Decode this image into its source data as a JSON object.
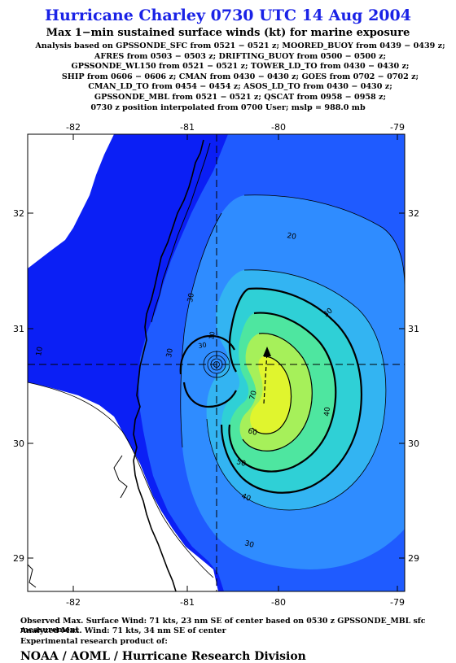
{
  "title": "Hurricane Charley 0730 UTC 14 Aug 2004",
  "subtitle": "Max 1−min sustained surface winds (kt) for marine exposure",
  "analysis_lines": [
    "Analysis based on  GPSSONDE_SFC from 0521 − 0521 z;  MOORED_BUOY from 0439 − 0439 z;",
    "AFRES from 0503 − 0503 z;  DRIFTING_BUOY from 0500 − 0500 z;",
    "GPSSONDE_WL150 from 0521 − 0521 z;  TOWER_LD_TO from 0430 − 0430 z;",
    "SHIP from 0606 − 0606 z;  CMAN from 0430 − 0430 z;  GOES from 0702 − 0702 z;",
    "CMAN_LD_TO from 0454 − 0454 z;  ASOS_LD_TO from 0430 − 0430 z;",
    "GPSSONDE_MBL from 0521 − 0521 z;  QSCAT from 0958 − 0958 z;"
  ],
  "position_note": "0730 z position interpolated from 0700 User; mslp = 988.0 mb",
  "map": {
    "lon_ticks": [
      "-82",
      "-81",
      "-80",
      "-79"
    ],
    "lat_ticks": [
      "32",
      "31",
      "30",
      "29"
    ],
    "contour_labels": [
      "10",
      "20",
      "30",
      "30",
      "30",
      "40",
      "40",
      "50",
      "60",
      "70",
      "10",
      "30",
      "30"
    ],
    "colors": {
      "land": "#ffffff",
      "ocean_low": "#0b1ff5",
      "ocean_15": "#1f5bff",
      "ocean_25": "#2f8cff",
      "ocean_35": "#33b4f2",
      "ocean_45": "#2fd0d6",
      "ocean_55": "#4ee6a0",
      "ocean_65": "#a6f05a",
      "ocean_70": "#e0f52e"
    }
  },
  "footer": {
    "observed": "Observed Max. Surface Wind: 71 kts, 23 nm SE of center based on 0530 z GPSSONDE_MBL sfc measurement",
    "analyzed": "Analyzed Max. Wind: 71 kts, 34 nm SE of center",
    "experimental": "Experimental research product of:",
    "org": "NOAA / AOML / Hurricane Research Division"
  }
}
